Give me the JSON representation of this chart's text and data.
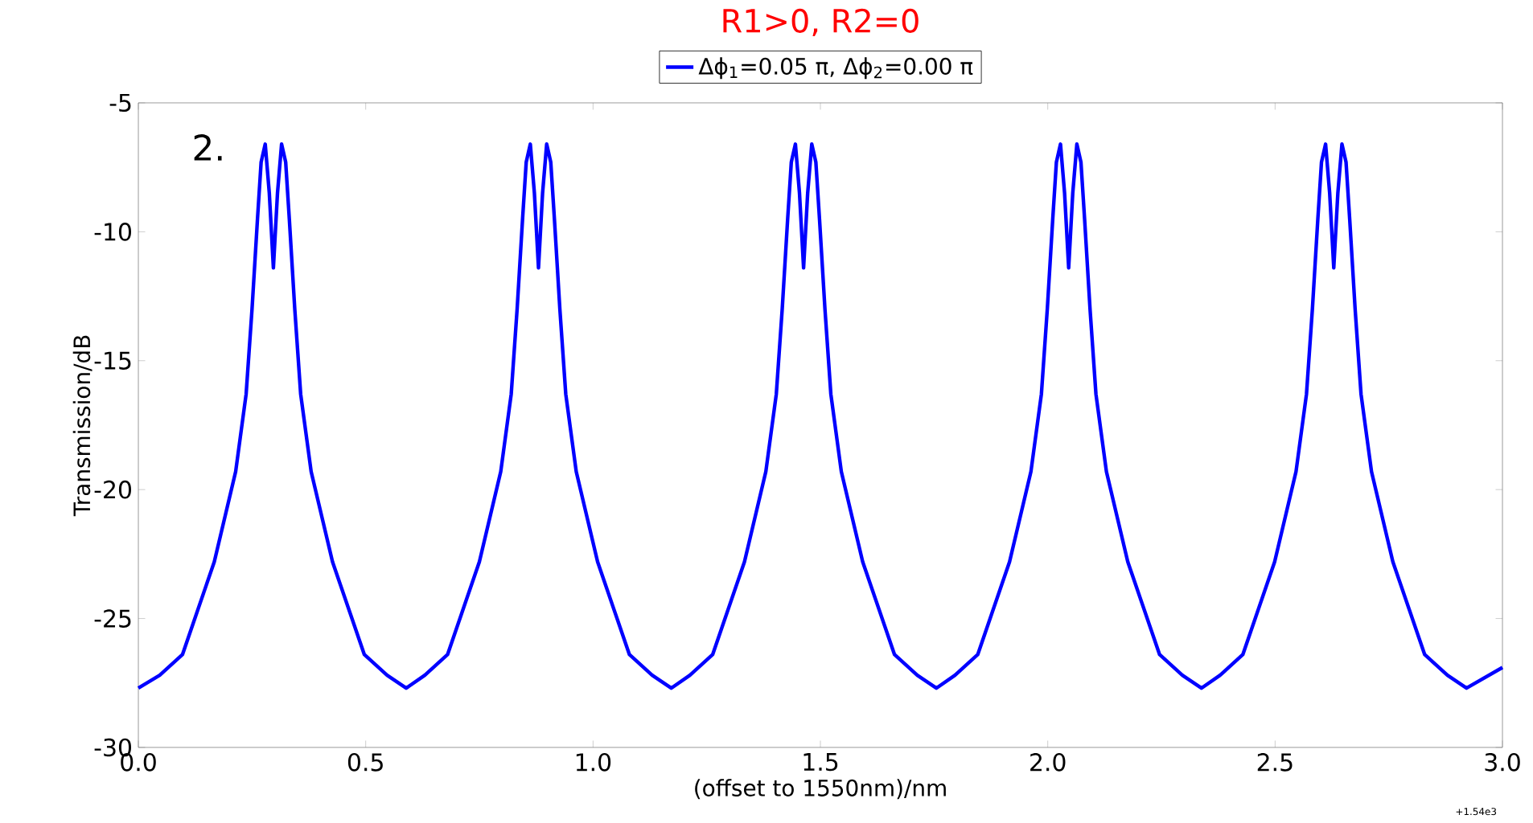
{
  "chart_data": {
    "type": "line",
    "title": "R1>0, R2=0",
    "xlabel": "(offset to 1550nm)/nm",
    "ylabel": "Transmission/dB",
    "annotations": [
      "2.",
      "+1.54e3"
    ],
    "legend": "top",
    "xlim": [
      0,
      3
    ],
    "ylim": [
      -30,
      -5
    ],
    "xticks": [
      {
        "value": 0,
        "label": "0.0"
      },
      {
        "value": 0.5,
        "label": "0.5"
      },
      {
        "value": 1,
        "label": "1.0"
      },
      {
        "value": 1.5,
        "label": "1.5"
      },
      {
        "value": 2,
        "label": "2.0"
      },
      {
        "value": 2.5,
        "label": "2.5"
      },
      {
        "value": 3,
        "label": "3.0"
      }
    ],
    "yticks": [
      -30,
      -25,
      -20,
      -15,
      -10,
      -5
    ],
    "series": [
      {
        "name": "Δϕ$_{1}$=0.05 π, Δϕ$_{2}$=0.00 π",
        "color": "#0000ff",
        "x": [
          0.0,
          0.047,
          0.097,
          0.167,
          0.214,
          0.237,
          0.25,
          0.262,
          0.27,
          0.279,
          0.288,
          0.297,
          0.306,
          0.315,
          0.324,
          0.332,
          0.344,
          0.357,
          0.38,
          0.427,
          0.497,
          0.547,
          0.589,
          0.63,
          0.68,
          0.75,
          0.797,
          0.82,
          0.833,
          0.845,
          0.853,
          0.862,
          0.871,
          0.88,
          0.889,
          0.898,
          0.907,
          0.915,
          0.927,
          0.94,
          0.963,
          1.01,
          1.08,
          1.13,
          1.172,
          1.213,
          1.263,
          1.333,
          1.38,
          1.403,
          1.416,
          1.428,
          1.436,
          1.445,
          1.454,
          1.463,
          1.472,
          1.481,
          1.49,
          1.498,
          1.51,
          1.523,
          1.546,
          1.593,
          1.663,
          1.713,
          1.755,
          1.796,
          1.846,
          1.916,
          1.963,
          1.986,
          1.999,
          2.011,
          2.019,
          2.028,
          2.037,
          2.046,
          2.055,
          2.064,
          2.073,
          2.081,
          2.093,
          2.106,
          2.129,
          2.176,
          2.246,
          2.296,
          2.338,
          2.379,
          2.429,
          2.499,
          2.546,
          2.569,
          2.582,
          2.594,
          2.602,
          2.611,
          2.62,
          2.629,
          2.638,
          2.647,
          2.656,
          2.664,
          2.676,
          2.689,
          2.712,
          2.759,
          2.829,
          2.879,
          2.921,
          3.0
        ],
        "values": [
          -27.7,
          -27.2,
          -26.4,
          -22.8,
          -19.3,
          -16.3,
          -13.0,
          -9.5,
          -7.3,
          -6.6,
          -8.5,
          -11.4,
          -8.5,
          -6.6,
          -7.3,
          -9.5,
          -13.0,
          -16.3,
          -19.3,
          -22.8,
          -26.4,
          -27.2,
          -27.7,
          -27.2,
          -26.4,
          -22.8,
          -19.3,
          -16.3,
          -13.0,
          -9.5,
          -7.3,
          -6.6,
          -8.5,
          -11.4,
          -8.5,
          -6.6,
          -7.3,
          -9.5,
          -13.0,
          -16.3,
          -19.3,
          -22.8,
          -26.4,
          -27.2,
          -27.7,
          -27.2,
          -26.4,
          -22.8,
          -19.3,
          -16.3,
          -13.0,
          -9.5,
          -7.3,
          -6.6,
          -8.5,
          -11.4,
          -8.5,
          -6.6,
          -7.3,
          -9.5,
          -13.0,
          -16.3,
          -19.3,
          -22.8,
          -26.4,
          -27.2,
          -27.7,
          -27.2,
          -26.4,
          -22.8,
          -19.3,
          -16.3,
          -13.0,
          -9.5,
          -7.3,
          -6.6,
          -8.5,
          -11.4,
          -8.5,
          -6.6,
          -7.3,
          -9.5,
          -13.0,
          -16.3,
          -19.3,
          -22.8,
          -26.4,
          -27.2,
          -27.7,
          -27.2,
          -26.4,
          -22.8,
          -19.3,
          -16.3,
          -13.0,
          -9.5,
          -7.3,
          -6.6,
          -8.5,
          -11.4,
          -8.5,
          -6.6,
          -7.3,
          -9.5,
          -13.0,
          -16.3,
          -19.3,
          -22.8,
          -26.4,
          -27.2,
          -27.7,
          -26.9
        ]
      }
    ]
  }
}
